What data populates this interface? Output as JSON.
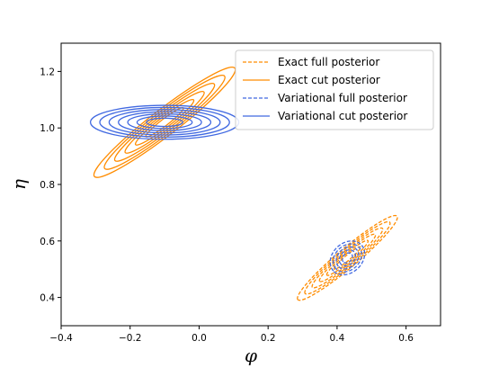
{
  "chart_data": {
    "type": "contour",
    "xlabel": "φ",
    "ylabel": "η",
    "xlim": [
      -0.4,
      0.7
    ],
    "ylim": [
      0.3,
      1.3
    ],
    "xticks": [
      -0.4,
      -0.2,
      0.0,
      0.2,
      0.4,
      0.6
    ],
    "xtick_labels": [
      "−0.4",
      "−0.2",
      "0.0",
      "0.2",
      "0.4",
      "0.6"
    ],
    "yticks": [
      0.4,
      0.6,
      0.8,
      1.0,
      1.2
    ],
    "ytick_labels": [
      "0.4",
      "0.6",
      "0.8",
      "1.0",
      "1.2"
    ],
    "grid": false,
    "legend_position": "top-right",
    "series": [
      {
        "name": "Exact full posterior",
        "color": "#ff8c00",
        "linestyle": "dashed",
        "center": [
          0.43,
          0.54
        ],
        "outer_extent_x": [
          0.28,
          0.57
        ],
        "outer_extent_y": [
          0.39,
          0.69
        ],
        "levels": 6
      },
      {
        "name": "Exact cut posterior",
        "color": "#ff8c00",
        "linestyle": "solid",
        "center": [
          -0.1,
          1.02
        ],
        "outer_extent_x": [
          -0.31,
          0.1
        ],
        "outer_extent_y": [
          0.83,
          1.22
        ],
        "levels": 6
      },
      {
        "name": "Variational full posterior",
        "color": "#4169e1",
        "linestyle": "dashed",
        "center": [
          0.43,
          0.54
        ],
        "outer_extent_x": [
          0.38,
          0.48
        ],
        "outer_extent_y": [
          0.48,
          0.6
        ],
        "levels": 5
      },
      {
        "name": "Variational cut posterior",
        "color": "#4169e1",
        "linestyle": "solid",
        "center": [
          -0.1,
          1.02
        ],
        "outer_extent_x": [
          -0.32,
          0.11
        ],
        "outer_extent_y": [
          0.96,
          1.08
        ],
        "levels": 7
      }
    ]
  }
}
